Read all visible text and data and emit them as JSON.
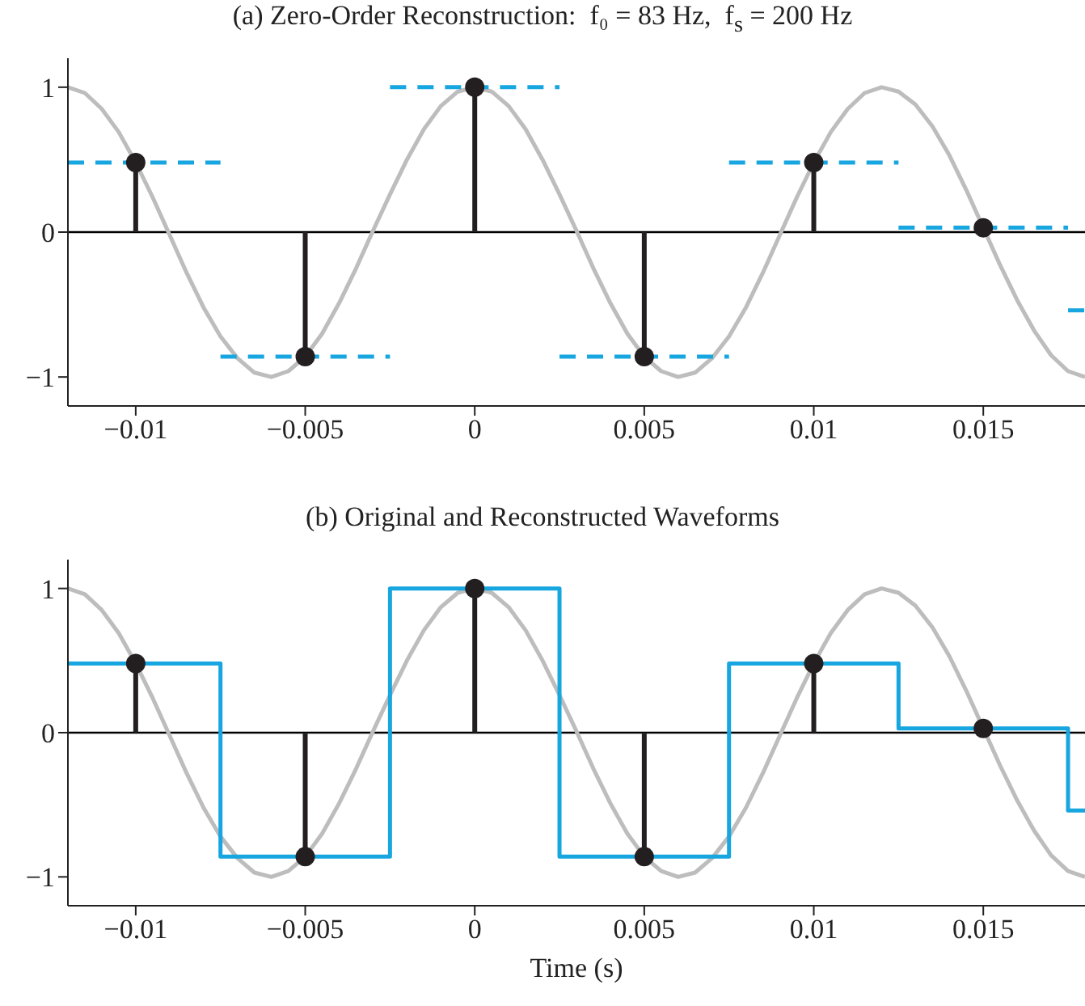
{
  "chart_data": [
    {
      "type": "line",
      "title": "(a) Zero-Order Reconstruction:  f₀ = 83 Hz,  f$_{s}$ = 200 Hz",
      "xlim": [
        -0.012,
        0.018
      ],
      "xticks": [
        -0.01,
        -0.005,
        0,
        0.005,
        0.01,
        0.015
      ],
      "ylim": [
        -1.2,
        1.2
      ],
      "yticks": [
        -1,
        0,
        1
      ],
      "ref_lines": [
        {
          "axis": "y",
          "value": 0,
          "color": "#000000"
        }
      ],
      "series": [
        {
          "type": "line",
          "color": "#bdbdbd",
          "x": [
            -0.012,
            -0.0115,
            -0.011,
            -0.0105,
            -0.01,
            -0.0095,
            -0.009,
            -0.0085,
            -0.008,
            -0.0075,
            -0.007,
            -0.0065,
            -0.006,
            -0.0055,
            -0.005,
            -0.0045,
            -0.004,
            -0.0035,
            -0.003,
            -0.0025,
            -0.002,
            -0.0015,
            -0.001,
            -0.0005,
            0,
            0.0005,
            0.001,
            0.0015,
            0.002,
            0.0025,
            0.003,
            0.0035,
            0.004,
            0.0045,
            0.005,
            0.0055,
            0.006,
            0.0065,
            0.007,
            0.0075,
            0.008,
            0.0085,
            0.009,
            0.0095,
            0.01,
            0.0105,
            0.011,
            0.0115,
            0.012,
            0.0125,
            0.013,
            0.0135,
            0.014,
            0.0145,
            0.015,
            0.0155,
            0.016,
            0.0165,
            0.017,
            0.0175,
            0.018
          ],
          "values": [
            1.0,
            0.96,
            0.85,
            0.69,
            0.48,
            0.24,
            -0.02,
            -0.28,
            -0.52,
            -0.72,
            -0.87,
            -0.97,
            -1.0,
            -0.96,
            -0.86,
            -0.7,
            -0.49,
            -0.25,
            0.01,
            0.26,
            0.5,
            0.71,
            0.87,
            0.97,
            1.0,
            0.97,
            0.87,
            0.71,
            0.5,
            0.26,
            0.01,
            -0.25,
            -0.49,
            -0.7,
            -0.86,
            -0.96,
            -1.0,
            -0.97,
            -0.87,
            -0.72,
            -0.52,
            -0.28,
            -0.02,
            0.24,
            0.48,
            0.69,
            0.85,
            0.96,
            1.0,
            0.97,
            0.88,
            0.73,
            0.53,
            0.29,
            0.03,
            -0.23,
            -0.47,
            -0.68,
            -0.85,
            -0.96,
            -1.0
          ]
        },
        {
          "type": "line",
          "line_style": "dashed",
          "color": "#17a6e0",
          "x": [
            -0.012,
            -0.0075
          ],
          "values": [
            0.48,
            0.48
          ]
        },
        {
          "type": "line",
          "line_style": "dashed",
          "color": "#17a6e0",
          "x": [
            -0.0075,
            -0.0025
          ],
          "values": [
            -0.86,
            -0.86
          ]
        },
        {
          "type": "line",
          "line_style": "dashed",
          "color": "#17a6e0",
          "x": [
            -0.0025,
            0.0025
          ],
          "values": [
            1.0,
            1.0
          ]
        },
        {
          "type": "line",
          "line_style": "dashed",
          "color": "#17a6e0",
          "x": [
            0.0025,
            0.0075
          ],
          "values": [
            -0.86,
            -0.86
          ]
        },
        {
          "type": "line",
          "line_style": "dashed",
          "color": "#17a6e0",
          "x": [
            0.0075,
            0.0125
          ],
          "values": [
            0.48,
            0.48
          ]
        },
        {
          "type": "line",
          "line_style": "dashed",
          "color": "#17a6e0",
          "x": [
            0.0125,
            0.0175
          ],
          "values": [
            0.03,
            0.03
          ]
        },
        {
          "type": "line",
          "line_style": "dashed",
          "color": "#17a6e0",
          "x": [
            0.0175,
            0.018
          ],
          "values": [
            -0.54,
            -0.54
          ]
        },
        {
          "type": "lollipop",
          "marker": "circle",
          "color": "#231f20",
          "x": [
            -0.01,
            -0.005,
            0,
            0.005,
            0.01,
            0.015
          ],
          "values": [
            0.48,
            -0.86,
            1.0,
            -0.86,
            0.48,
            0.03
          ]
        }
      ]
    },
    {
      "type": "line",
      "title": "(b) Original and Reconstructed Waveforms",
      "xlabel": "Time (s)",
      "xlim": [
        -0.012,
        0.018
      ],
      "xticks": [
        -0.01,
        -0.005,
        0,
        0.005,
        0.01,
        0.015
      ],
      "ylim": [
        -1.2,
        1.2
      ],
      "yticks": [
        -1,
        0,
        1
      ],
      "ref_lines": [
        {
          "axis": "y",
          "value": 0,
          "color": "#000000"
        }
      ],
      "series": [
        {
          "type": "line",
          "color": "#bdbdbd",
          "x": [
            -0.012,
            -0.0115,
            -0.011,
            -0.0105,
            -0.01,
            -0.0095,
            -0.009,
            -0.0085,
            -0.008,
            -0.0075,
            -0.007,
            -0.0065,
            -0.006,
            -0.0055,
            -0.005,
            -0.0045,
            -0.004,
            -0.0035,
            -0.003,
            -0.0025,
            -0.002,
            -0.0015,
            -0.001,
            -0.0005,
            0,
            0.0005,
            0.001,
            0.0015,
            0.002,
            0.0025,
            0.003,
            0.0035,
            0.004,
            0.0045,
            0.005,
            0.0055,
            0.006,
            0.0065,
            0.007,
            0.0075,
            0.008,
            0.0085,
            0.009,
            0.0095,
            0.01,
            0.0105,
            0.011,
            0.0115,
            0.012,
            0.0125,
            0.013,
            0.0135,
            0.014,
            0.0145,
            0.015,
            0.0155,
            0.016,
            0.0165,
            0.017,
            0.0175,
            0.018
          ],
          "values": [
            1.0,
            0.96,
            0.85,
            0.69,
            0.48,
            0.24,
            -0.02,
            -0.28,
            -0.52,
            -0.72,
            -0.87,
            -0.97,
            -1.0,
            -0.96,
            -0.86,
            -0.7,
            -0.49,
            -0.25,
            0.01,
            0.26,
            0.5,
            0.71,
            0.87,
            0.97,
            1.0,
            0.97,
            0.87,
            0.71,
            0.5,
            0.26,
            0.01,
            -0.25,
            -0.49,
            -0.7,
            -0.86,
            -0.96,
            -1.0,
            -0.97,
            -0.87,
            -0.72,
            -0.52,
            -0.28,
            -0.02,
            0.24,
            0.48,
            0.69,
            0.85,
            0.96,
            1.0,
            0.97,
            0.88,
            0.73,
            0.53,
            0.29,
            0.03,
            -0.23,
            -0.47,
            -0.68,
            -0.85,
            -0.96,
            -1.0
          ]
        },
        {
          "type": "step",
          "color": "#17a6e0",
          "x": [
            -0.012,
            -0.0075,
            -0.0025,
            0.0025,
            0.0075,
            0.0125,
            0.0175,
            0.018
          ],
          "values": [
            0.48,
            -0.86,
            1.0,
            -0.86,
            0.48,
            0.03,
            -0.54,
            -0.54
          ]
        },
        {
          "type": "lollipop",
          "marker": "circle",
          "color": "#231f20",
          "x": [
            -0.01,
            -0.005,
            0,
            0.005,
            0.01,
            0.015
          ],
          "values": [
            0.48,
            -0.86,
            1.0,
            -0.86,
            0.48,
            0.03
          ]
        }
      ]
    }
  ]
}
